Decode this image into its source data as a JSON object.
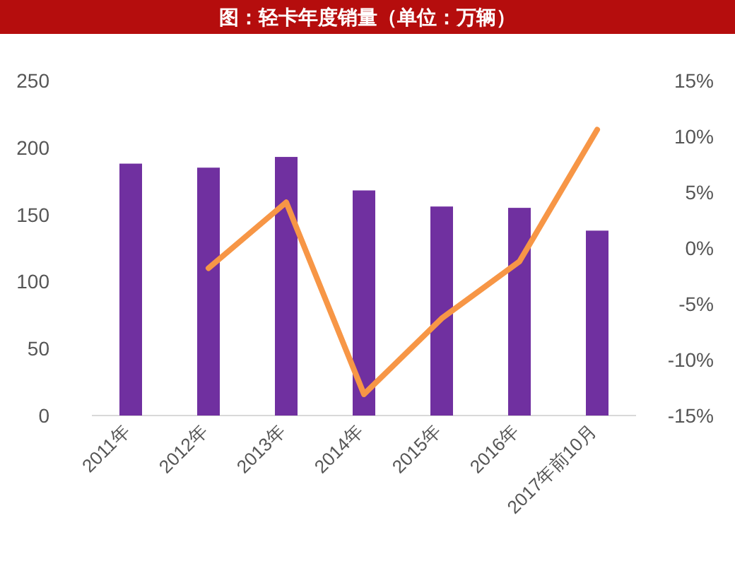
{
  "chart_data": {
    "type": "bar",
    "title": "图：轻卡年度销量（单位：万辆）",
    "categories": [
      "2011年",
      "2012年",
      "2013年",
      "2014年",
      "2015年",
      "2016年",
      "2017年前10月"
    ],
    "series": [
      {
        "color": "#7030a0",
        "values": [
          188,
          185,
          193,
          168,
          156,
          155,
          138
        ]
      },
      {
        "type": "line",
        "axis": "y2",
        "color": "#f79646",
        "values": [
          null,
          -1.8,
          4.1,
          -13.1,
          -6.3,
          -1.2,
          10.6
        ]
      }
    ],
    "ylim": [
      0,
      250
    ],
    "yticks": [
      0,
      50,
      100,
      150,
      200,
      250
    ],
    "y2lim": [
      -15,
      15
    ],
    "y2ticks": [
      {
        "value": -15,
        "label": "-15%"
      },
      {
        "value": -10,
        "label": "-10%"
      },
      {
        "value": -5,
        "label": "-5%"
      },
      {
        "value": 0,
        "label": "0%"
      },
      {
        "value": 5,
        "label": "5%"
      },
      {
        "value": 10,
        "label": "10%"
      },
      {
        "value": 15,
        "label": "15%"
      }
    ],
    "line_style": "solid"
  }
}
